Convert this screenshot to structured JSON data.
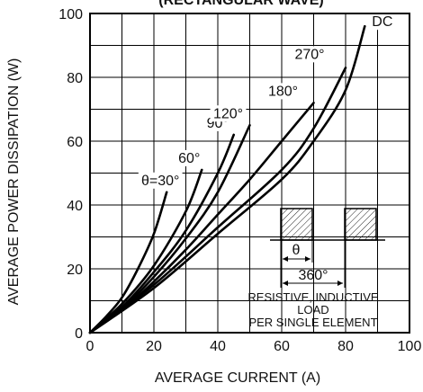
{
  "chart_data": {
    "type": "line",
    "title": "(RECTANGULAR WAVE)",
    "xlabel": "AVERAGE CURRENT (A)",
    "ylabel": "AVERAGE POWER DISSIPATION (W)",
    "xlim": [
      0,
      100
    ],
    "ylim": [
      0,
      100
    ],
    "xticks": [
      "0",
      "20",
      "40",
      "60",
      "80",
      "100"
    ],
    "yticks": [
      "0",
      "20",
      "40",
      "60",
      "80",
      "100"
    ],
    "grid": true,
    "series": [
      {
        "name": "θ=30°",
        "x": [
          0,
          5,
          10,
          15,
          20,
          24
        ],
        "y": [
          0,
          5,
          11,
          20,
          31,
          44
        ]
      },
      {
        "name": "60°",
        "x": [
          0,
          10,
          20,
          30,
          35
        ],
        "y": [
          0,
          9,
          21,
          38,
          51
        ]
      },
      {
        "name": "90°",
        "x": [
          0,
          10,
          20,
          30,
          40,
          45
        ],
        "y": [
          0,
          8,
          19,
          32,
          50,
          62
        ]
      },
      {
        "name": "120°",
        "x": [
          0,
          10,
          20,
          30,
          40,
          50
        ],
        "y": [
          0,
          7.5,
          17.5,
          29.5,
          44,
          65
        ]
      },
      {
        "name": "180°",
        "x": [
          0,
          10,
          20,
          30,
          40,
          50,
          60,
          70
        ],
        "y": [
          0,
          7,
          16,
          26,
          37,
          48,
          60,
          72
        ]
      },
      {
        "name": "270°",
        "x": [
          0,
          20,
          40,
          60,
          70,
          80
        ],
        "y": [
          0,
          15,
          33,
          51,
          64,
          83
        ]
      },
      {
        "name": "DC",
        "x": [
          0,
          20,
          40,
          60,
          70,
          80,
          86
        ],
        "y": [
          0,
          14,
          31,
          48,
          60,
          76,
          96
        ]
      }
    ],
    "annotations": {
      "theta_label": "θ",
      "period_label": "360°",
      "note_line1": "RESISTIVE, INDUCTIVE",
      "note_line2": "LOAD",
      "note_line3": "PER SINGLE ELEMENT"
    }
  }
}
